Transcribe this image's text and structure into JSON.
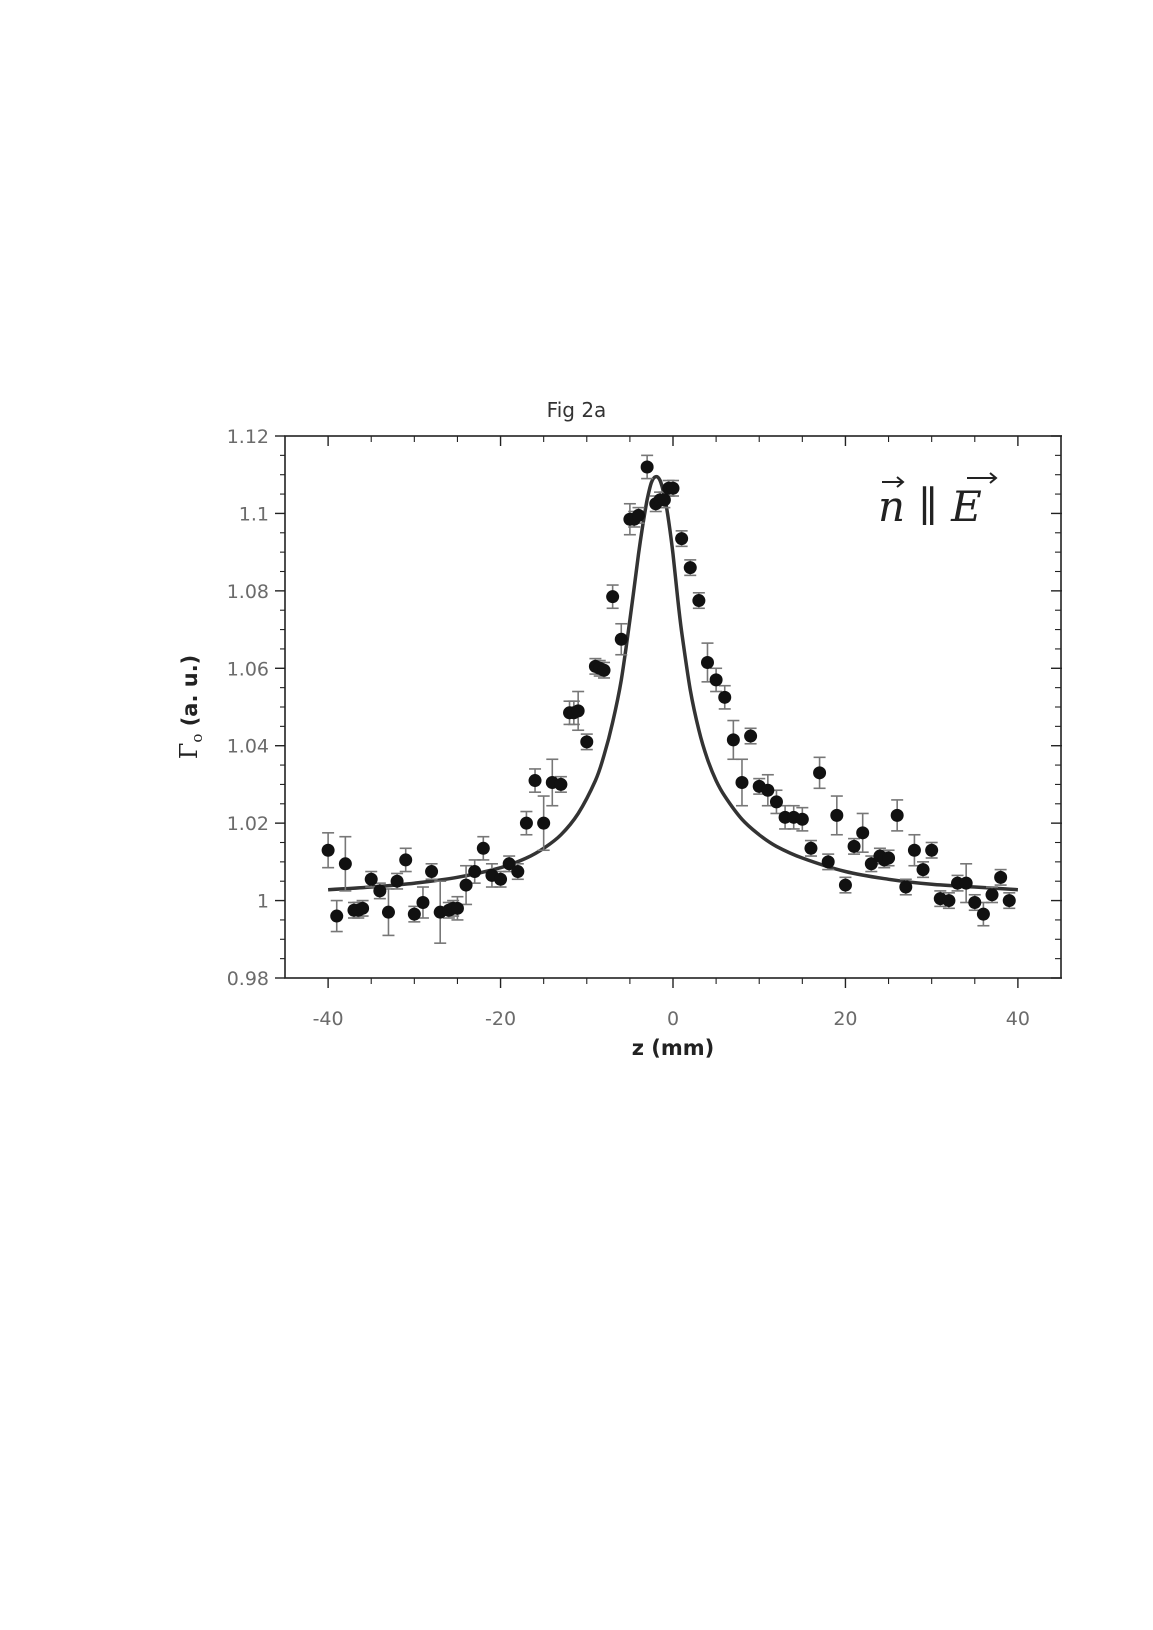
{
  "chart_data": {
    "type": "scatter",
    "title": "Fig 2a",
    "xlabel": "z (mm)",
    "ylabel_symbol": "Γ",
    "ylabel_subscript": "o",
    "ylabel_rest": " (a. u.)",
    "annotation": "n ∥ E",
    "xlim": [
      -45,
      45
    ],
    "ylim": [
      0.98,
      1.12
    ],
    "x_ticks": [
      -40,
      -20,
      0,
      20,
      40
    ],
    "x_tick_labels": [
      "-40",
      "-20",
      "0",
      "20",
      "40"
    ],
    "y_ticks": [
      0.98,
      1.0,
      1.02,
      1.04,
      1.06,
      1.08,
      1.1,
      1.12
    ],
    "y_tick_labels": [
      "0.98",
      "1",
      "1.02",
      "1.04",
      "1.06",
      "1.08",
      "1.1",
      "1.12"
    ],
    "grid": false,
    "series": [
      {
        "kind": "points_with_error_bars",
        "x": [
          -40,
          -39,
          -38,
          -37,
          -36.5,
          -36,
          -35,
          -34,
          -33,
          -32,
          -31,
          -30,
          -29,
          -28,
          -27,
          -26,
          -25.5,
          -25,
          -24,
          -23,
          -22,
          -21,
          -20,
          -19,
          -18,
          -17,
          -16,
          -15,
          -14,
          -13,
          -12,
          -11.5,
          -11,
          -10,
          -9,
          -8.5,
          -8,
          -7,
          -6,
          -5,
          -4.5,
          -4,
          -3,
          -2,
          -1.5,
          -1,
          -0.5,
          0,
          1,
          2,
          3,
          4,
          5,
          6,
          7,
          8,
          9,
          10,
          11,
          12,
          13,
          14,
          15,
          16,
          17,
          18,
          19,
          20,
          21,
          22,
          23,
          24,
          24.5,
          25,
          26,
          27,
          28,
          29,
          30,
          31,
          32,
          33,
          34,
          35,
          36,
          37,
          38,
          39
        ],
        "y": [
          1.013,
          0.996,
          1.0095,
          0.9975,
          0.9975,
          0.998,
          1.0055,
          1.0025,
          0.997,
          1.005,
          1.0105,
          0.9965,
          0.9995,
          1.0075,
          0.997,
          0.9975,
          0.998,
          0.998,
          1.004,
          1.0075,
          1.0135,
          1.0065,
          1.0055,
          1.0095,
          1.0075,
          1.02,
          1.031,
          1.02,
          1.0305,
          1.03,
          1.0485,
          1.0485,
          1.049,
          1.041,
          1.0605,
          1.06,
          1.0595,
          1.0785,
          1.0675,
          1.0985,
          1.0985,
          1.0995,
          1.112,
          1.1025,
          1.1035,
          1.1035,
          1.1065,
          1.1065,
          1.0935,
          1.086,
          1.0775,
          1.0615,
          1.057,
          1.0525,
          1.0415,
          1.0305,
          1.0425,
          1.0295,
          1.0285,
          1.0255,
          1.0215,
          1.0215,
          1.021,
          1.0135,
          1.033,
          1.01,
          1.022,
          1.004,
          1.014,
          1.0175,
          1.0095,
          1.0115,
          1.0105,
          1.011,
          1.022,
          1.0035,
          1.013,
          1.008,
          1.013,
          1.0005,
          1.0,
          1.0045,
          1.0045,
          0.9995,
          0.9965,
          1.0015,
          1.006,
          1.0
        ],
        "err": [
          0.0045,
          0.004,
          0.007,
          0.002,
          0.002,
          0.002,
          0.002,
          0.002,
          0.006,
          0.002,
          0.003,
          0.002,
          0.004,
          0.002,
          0.008,
          0.002,
          0.002,
          0.003,
          0.005,
          0.003,
          0.003,
          0.003,
          0.002,
          0.002,
          0.002,
          0.003,
          0.003,
          0.007,
          0.006,
          0.002,
          0.003,
          0.003,
          0.005,
          0.002,
          0.002,
          0.002,
          0.002,
          0.003,
          0.004,
          0.004,
          0.002,
          0.002,
          0.003,
          0.002,
          0.002,
          0.002,
          0.002,
          0.002,
          0.002,
          0.002,
          0.002,
          0.005,
          0.003,
          0.003,
          0.005,
          0.006,
          0.002,
          0.002,
          0.004,
          0.003,
          0.003,
          0.003,
          0.003,
          0.002,
          0.004,
          0.002,
          0.005,
          0.002,
          0.002,
          0.005,
          0.002,
          0.002,
          0.002,
          0.002,
          0.004,
          0.002,
          0.004,
          0.002,
          0.002,
          0.002,
          0.002,
          0.002,
          0.005,
          0.002,
          0.003,
          0.002,
          0.002,
          0.002
        ]
      },
      {
        "kind": "fit_curve",
        "x": [
          -40,
          -35,
          -30,
          -25,
          -20,
          -17,
          -15,
          -13,
          -11,
          -9,
          -8,
          -7,
          -6,
          -5,
          -4,
          -3.5,
          -3,
          -2.5,
          -2,
          -1.5,
          -1,
          -0.5,
          0,
          0.5,
          1,
          2,
          3,
          4,
          5,
          6,
          8,
          10,
          12,
          15,
          20,
          25,
          30,
          35,
          40
        ],
        "y": [
          1.0028,
          1.0035,
          1.0045,
          1.006,
          1.0085,
          1.011,
          1.0135,
          1.017,
          1.0225,
          1.031,
          1.0375,
          1.046,
          1.057,
          1.0725,
          1.0895,
          1.097,
          1.1035,
          1.108,
          1.1095,
          1.1085,
          1.1045,
          1.098,
          1.0895,
          1.079,
          1.0695,
          1.0545,
          1.044,
          1.0365,
          1.031,
          1.027,
          1.021,
          1.017,
          1.014,
          1.011,
          1.0075,
          1.0055,
          1.0042,
          1.0035,
          1.0028
        ]
      }
    ]
  }
}
